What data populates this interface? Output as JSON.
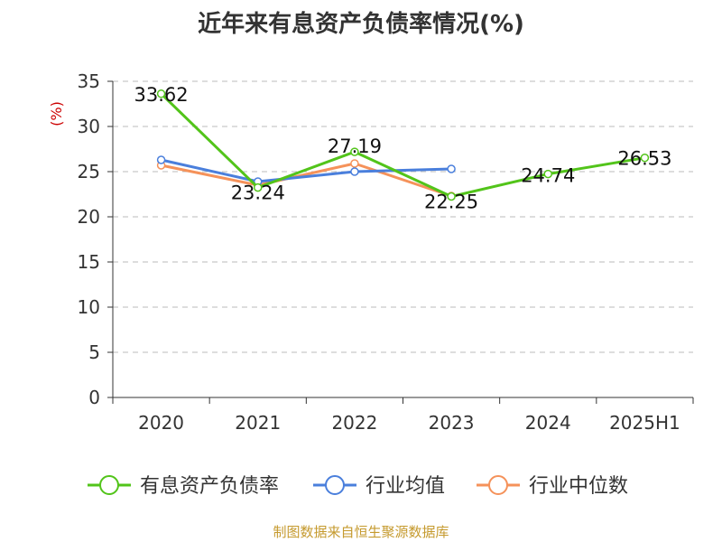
{
  "title": "近年来有息资产负债率情况(%)",
  "source": "制图数据来自恒生聚源数据库",
  "colors": {
    "axis": "#333333",
    "grid": "#bbbbbb",
    "ylabel": "#cc0000",
    "series": [
      "#52c41a",
      "#4a7fdc",
      "#f5925a"
    ]
  },
  "chart_data": {
    "type": "line",
    "categories": [
      "2020",
      "2021",
      "2022",
      "2023",
      "2024",
      "2025H1"
    ],
    "ylabel": "(%)",
    "ylim": [
      0,
      35
    ],
    "yticks": [
      0,
      5,
      10,
      15,
      20,
      25,
      30,
      35
    ],
    "grid": true,
    "legend_position": "bottom",
    "series": [
      {
        "name": "有息资产负债率",
        "values": [
          33.62,
          23.24,
          27.19,
          22.25,
          24.74,
          26.53
        ],
        "data_labels": [
          "33.62",
          "23.24",
          "27.19",
          "22.25",
          "24.74",
          "26.53"
        ]
      },
      {
        "name": "行业均值",
        "values": [
          26.3,
          23.9,
          25.0,
          25.3,
          null,
          null
        ]
      },
      {
        "name": "行业中位数",
        "values": [
          25.7,
          23.5,
          25.9,
          22.3,
          null,
          null
        ]
      }
    ]
  }
}
